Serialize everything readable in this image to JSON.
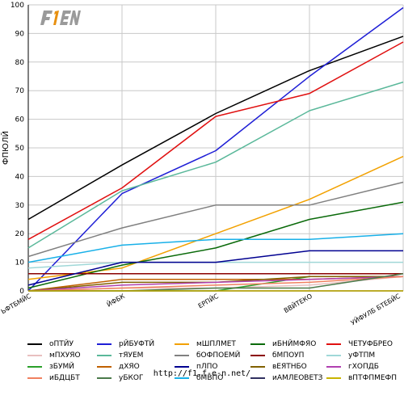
{
  "page": {
    "footer": "http://f1.f-e-n.net/"
  },
  "logo": {
    "text": "F1EN"
  },
  "chart_data": {
    "type": "line",
    "ylabel": "ФПЮЛЙ",
    "ylim": [
      0,
      100
    ],
    "yticks": [
      0,
      10,
      20,
      30,
      40,
      50,
      60,
      70,
      80,
      90,
      100
    ],
    "grid": true,
    "legend_placement": "bottom",
    "categories": [
      "ЬФТБМЙС",
      "ЙФБК",
      "ЕРПЙС",
      "ВВЙТЕКО",
      "УЙФУЛБ БТЕБЙС"
    ],
    "series": [
      {
        "name": "оПТЙУ",
        "color": "#000000",
        "values": [
          25,
          44,
          62,
          77,
          89
        ]
      },
      {
        "name": "рЙБУФТЙ",
        "color": "#1f1fd6",
        "values": [
          0,
          34,
          49,
          75,
          99
        ]
      },
      {
        "name": "мШПЛМЕТ",
        "color": "#f2a100",
        "values": [
          4,
          8,
          20,
          32,
          47
        ]
      },
      {
        "name": "иБНЙМФЯО",
        "color": "#0a6a0a",
        "values": [
          1,
          9,
          15,
          25,
          31
        ]
      },
      {
        "name": "ЧЕТУФБРЕО",
        "color": "#e01010",
        "values": [
          18,
          36,
          61,
          69,
          87
        ]
      },
      {
        "name": "мПХУЯО",
        "color": "#e8c0c0",
        "values": [
          0,
          1,
          1,
          2,
          5
        ]
      },
      {
        "name": "тЯУЕМ",
        "color": "#5ab89a",
        "values": [
          15,
          35,
          45,
          63,
          73
        ]
      },
      {
        "name": "бОФПОЕМЙ",
        "color": "#808080",
        "values": [
          12,
          22,
          30,
          30,
          38
        ]
      },
      {
        "name": "бМПОУП",
        "color": "#8b0000",
        "values": [
          6,
          6,
          6,
          6,
          6
        ]
      },
      {
        "name": "уФТПМ",
        "color": "#a0d8d8",
        "values": [
          8,
          10,
          10,
          10,
          10
        ]
      },
      {
        "name": "зБУМЙ",
        "color": "#2aa02a",
        "values": [
          0,
          0,
          0,
          5,
          5
        ]
      },
      {
        "name": "дХЯО",
        "color": "#c06000",
        "values": [
          0,
          4,
          4,
          4,
          5
        ]
      },
      {
        "name": "пЛПО",
        "color": "#000090",
        "values": [
          2,
          10,
          10,
          14,
          14
        ]
      },
      {
        "name": "вЕЯТНБО",
        "color": "#806000",
        "values": [
          0,
          3,
          3,
          5,
          5
        ]
      },
      {
        "name": "гХОПДБ",
        "color": "#b040b0",
        "values": [
          0,
          2,
          3,
          4,
          5
        ]
      },
      {
        "name": "иБДЦБТ",
        "color": "#f08060",
        "values": [
          0,
          1,
          2,
          3,
          5
        ]
      },
      {
        "name": "уБКОГ",
        "color": "#4a7a4a",
        "values": [
          0,
          0,
          1,
          1,
          6
        ]
      },
      {
        "name": "бМВПО",
        "color": "#18b0e8",
        "values": [
          10,
          16,
          18,
          18,
          20
        ]
      },
      {
        "name": "иАМЛЕОВЕТЗ",
        "color": "#303060",
        "values": [
          0,
          0,
          0,
          0,
          0
        ]
      },
      {
        "name": "вПТФПМЕФП",
        "color": "#c8b400",
        "values": [
          0,
          0,
          0,
          0,
          0
        ]
      }
    ]
  }
}
